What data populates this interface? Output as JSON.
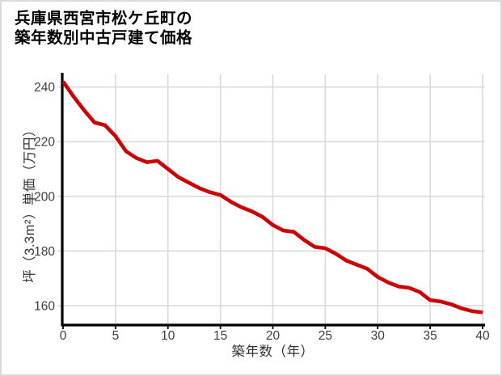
{
  "title": {
    "line1": "兵庫県西宮市松ケ丘町の",
    "line2": "築年数別中古戸建て価格"
  },
  "chart_data": {
    "type": "line",
    "title": "兵庫県西宮市松ケ丘町の築年数別中古戸建て価格",
    "xlabel": "築年数（年）",
    "ylabel": "坪（3.3m²）単価（万円）",
    "x": [
      0,
      1,
      2,
      3,
      4,
      5,
      6,
      7,
      8,
      9,
      10,
      11,
      12,
      13,
      14,
      15,
      16,
      17,
      18,
      19,
      20,
      21,
      22,
      23,
      24,
      25,
      26,
      27,
      28,
      29,
      30,
      31,
      32,
      33,
      34,
      35,
      36,
      37,
      38,
      39,
      40
    ],
    "series": [
      {
        "name": "坪単価（万円）",
        "color": "#cc0000",
        "values": [
          242,
          236.5,
          231.5,
          227,
          226,
          222,
          216.5,
          214,
          212.5,
          213,
          210,
          207,
          205,
          203,
          201.5,
          200.5,
          198,
          196,
          194.5,
          192.5,
          189.5,
          187.5,
          187,
          184,
          181.5,
          181,
          179,
          176.5,
          175,
          173.5,
          170.5,
          168.5,
          167,
          166.5,
          165,
          162,
          161.5,
          160.5,
          159,
          158,
          157.5
        ]
      }
    ],
    "xlim": [
      0,
      40
    ],
    "ylim": [
      153,
      245
    ],
    "x_ticks": [
      0,
      5,
      10,
      15,
      20,
      25,
      30,
      35,
      40
    ],
    "y_ticks": [
      160,
      180,
      200,
      220,
      240
    ],
    "grid": true,
    "legend": false
  },
  "colors": {
    "line": "#cc0000",
    "grid": "#d9d9d9",
    "axis": "#000000",
    "tick_text": "#3d3d3d",
    "title_text": "#000000",
    "background": "#ffffff",
    "border": "#d9d9d9"
  }
}
